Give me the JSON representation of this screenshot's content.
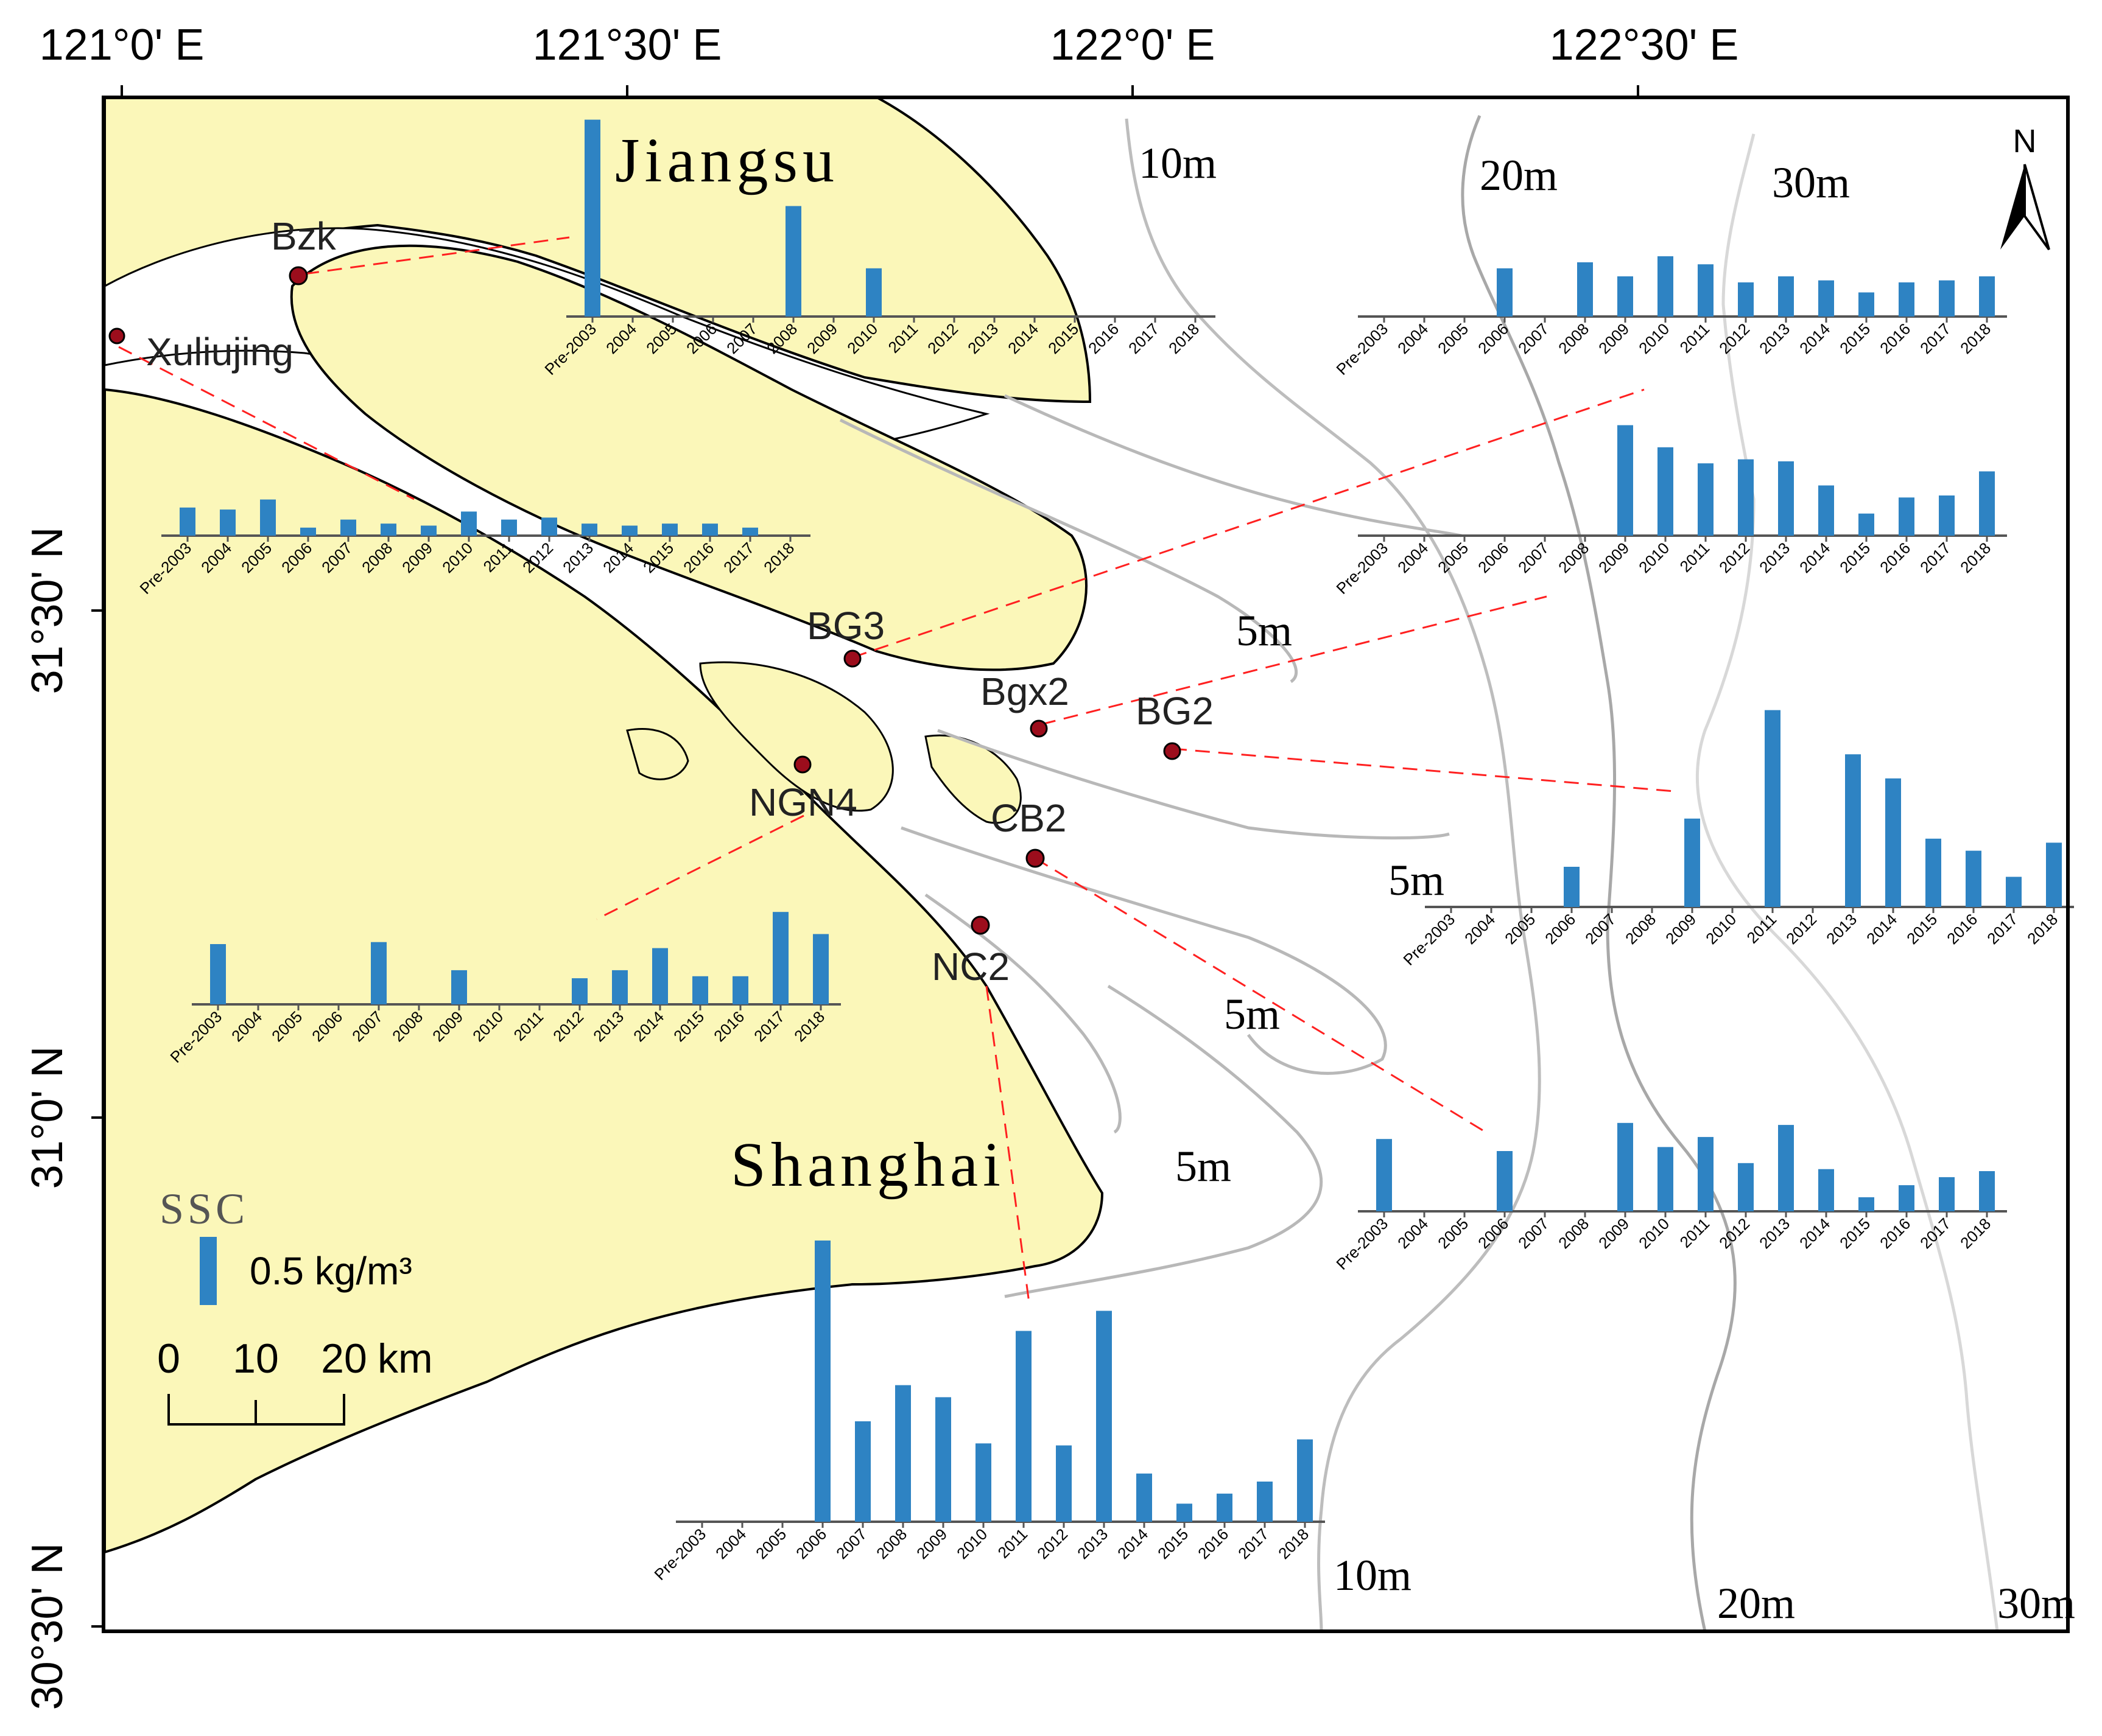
{
  "coordinates": {
    "top": [
      "121°0' E",
      "121°30' E",
      "122°0' E",
      "122°30' E"
    ],
    "left": [
      "31°30' N",
      "31°0' N",
      "30°30' N"
    ]
  },
  "regions": {
    "north": "Jiangsu",
    "south": "Shanghai"
  },
  "north_arrow": "N",
  "contours": {
    "label_10m": "10m",
    "label_20m": "20m",
    "label_30m": "30m",
    "label_5m": "5m"
  },
  "stations": [
    {
      "name": "Bzk"
    },
    {
      "name": "Xuliujing"
    },
    {
      "name": "BG3"
    },
    {
      "name": "Bgx2"
    },
    {
      "name": "BG2"
    },
    {
      "name": "NGN4"
    },
    {
      "name": "CB2"
    },
    {
      "name": "NC2"
    }
  ],
  "legend": {
    "title": "SSC",
    "bar_label": "0.5 kg/m³",
    "bar_value": 0.5
  },
  "scale_bar": {
    "ticks": [
      "0",
      "10",
      "20"
    ],
    "unit": "km"
  },
  "chart_data": [
    {
      "type": "bar",
      "station": "Bzk",
      "categories": [
        "Pre-2003",
        "2004",
        "2005",
        "2006",
        "2007",
        "2008",
        "2009",
        "2010",
        "2011",
        "2012",
        "2013",
        "2014",
        "2015",
        "2016",
        "2017",
        "2018"
      ],
      "values": [
        0.98,
        0,
        0,
        0,
        0,
        0.55,
        0,
        0.24,
        0,
        0,
        0,
        0,
        0,
        0,
        0,
        0
      ]
    },
    {
      "type": "bar",
      "station": "Xuliujing",
      "categories": [
        "Pre-2003",
        "2004",
        "2005",
        "2006",
        "2007",
        "2008",
        "2009",
        "2010",
        "2011",
        "2012",
        "2013",
        "2014",
        "2015",
        "2016",
        "2017",
        "2018"
      ],
      "values": [
        0.14,
        0.13,
        0.18,
        0.04,
        0.08,
        0.06,
        0.05,
        0.12,
        0.08,
        0.09,
        0.06,
        0.05,
        0.06,
        0.06,
        0.04,
        0
      ]
    },
    {
      "type": "bar",
      "station": "BG3",
      "categories": [
        "Pre-2003",
        "2004",
        "2005",
        "2006",
        "2007",
        "2008",
        "2009",
        "2010",
        "2011",
        "2012",
        "2013",
        "2014",
        "2015",
        "2016",
        "2017",
        "2018"
      ],
      "values": [
        0,
        0,
        0,
        0.24,
        0,
        0.27,
        0.2,
        0.3,
        0.26,
        0.17,
        0.2,
        0.18,
        0.12,
        0.17,
        0.18,
        0.2
      ]
    },
    {
      "type": "bar",
      "station": "Bgx2",
      "categories": [
        "Pre-2003",
        "2004",
        "2005",
        "2006",
        "2007",
        "2008",
        "2009",
        "2010",
        "2011",
        "2012",
        "2013",
        "2014",
        "2015",
        "2016",
        "2017",
        "2018"
      ],
      "values": [
        0,
        0,
        0,
        0,
        0,
        0,
        0.55,
        0.44,
        0.36,
        0.38,
        0.37,
        0.25,
        0.11,
        0.19,
        0.2,
        0.32
      ]
    },
    {
      "type": "bar",
      "station": "BG2",
      "categories": [
        "Pre-2003",
        "2004",
        "2005",
        "2006",
        "2007",
        "2008",
        "2009",
        "2010",
        "2011",
        "2012",
        "2013",
        "2014",
        "2015",
        "2016",
        "2017",
        "2018"
      ],
      "values": [
        0,
        0,
        0,
        0.2,
        0,
        0,
        0.44,
        0,
        0.98,
        0,
        0.76,
        0.64,
        0.34,
        0.28,
        0.15,
        0.32
      ]
    },
    {
      "type": "bar",
      "station": "NGN4",
      "categories": [
        "Pre-2003",
        "2004",
        "2005",
        "2006",
        "2007",
        "2008",
        "2009",
        "2010",
        "2011",
        "2012",
        "2013",
        "2014",
        "2015",
        "2016",
        "2017",
        "2018"
      ],
      "values": [
        0.3,
        0,
        0,
        0,
        0.31,
        0,
        0.17,
        0,
        0,
        0.13,
        0.17,
        0.28,
        0.14,
        0.14,
        0.46,
        0.35
      ]
    },
    {
      "type": "bar",
      "station": "CB2",
      "categories": [
        "Pre-2003",
        "2004",
        "2005",
        "2006",
        "2007",
        "2008",
        "2009",
        "2010",
        "2011",
        "2012",
        "2013",
        "2014",
        "2015",
        "2016",
        "2017",
        "2018"
      ],
      "values": [
        0.36,
        0,
        0,
        0.3,
        0,
        0,
        0.44,
        0.32,
        0.37,
        0.24,
        0.43,
        0.21,
        0.07,
        0.13,
        0.17,
        0.2
      ]
    },
    {
      "type": "bar",
      "station": "NC2",
      "categories": [
        "Pre-2003",
        "2004",
        "2005",
        "2006",
        "2007",
        "2008",
        "2009",
        "2010",
        "2011",
        "2012",
        "2013",
        "2014",
        "2015",
        "2016",
        "2017",
        "2018"
      ],
      "values": [
        0,
        0,
        0,
        1.4,
        0.5,
        0.68,
        0.62,
        0.39,
        0.95,
        0.38,
        1.05,
        0.24,
        0.09,
        0.14,
        0.2,
        0.41
      ]
    }
  ]
}
